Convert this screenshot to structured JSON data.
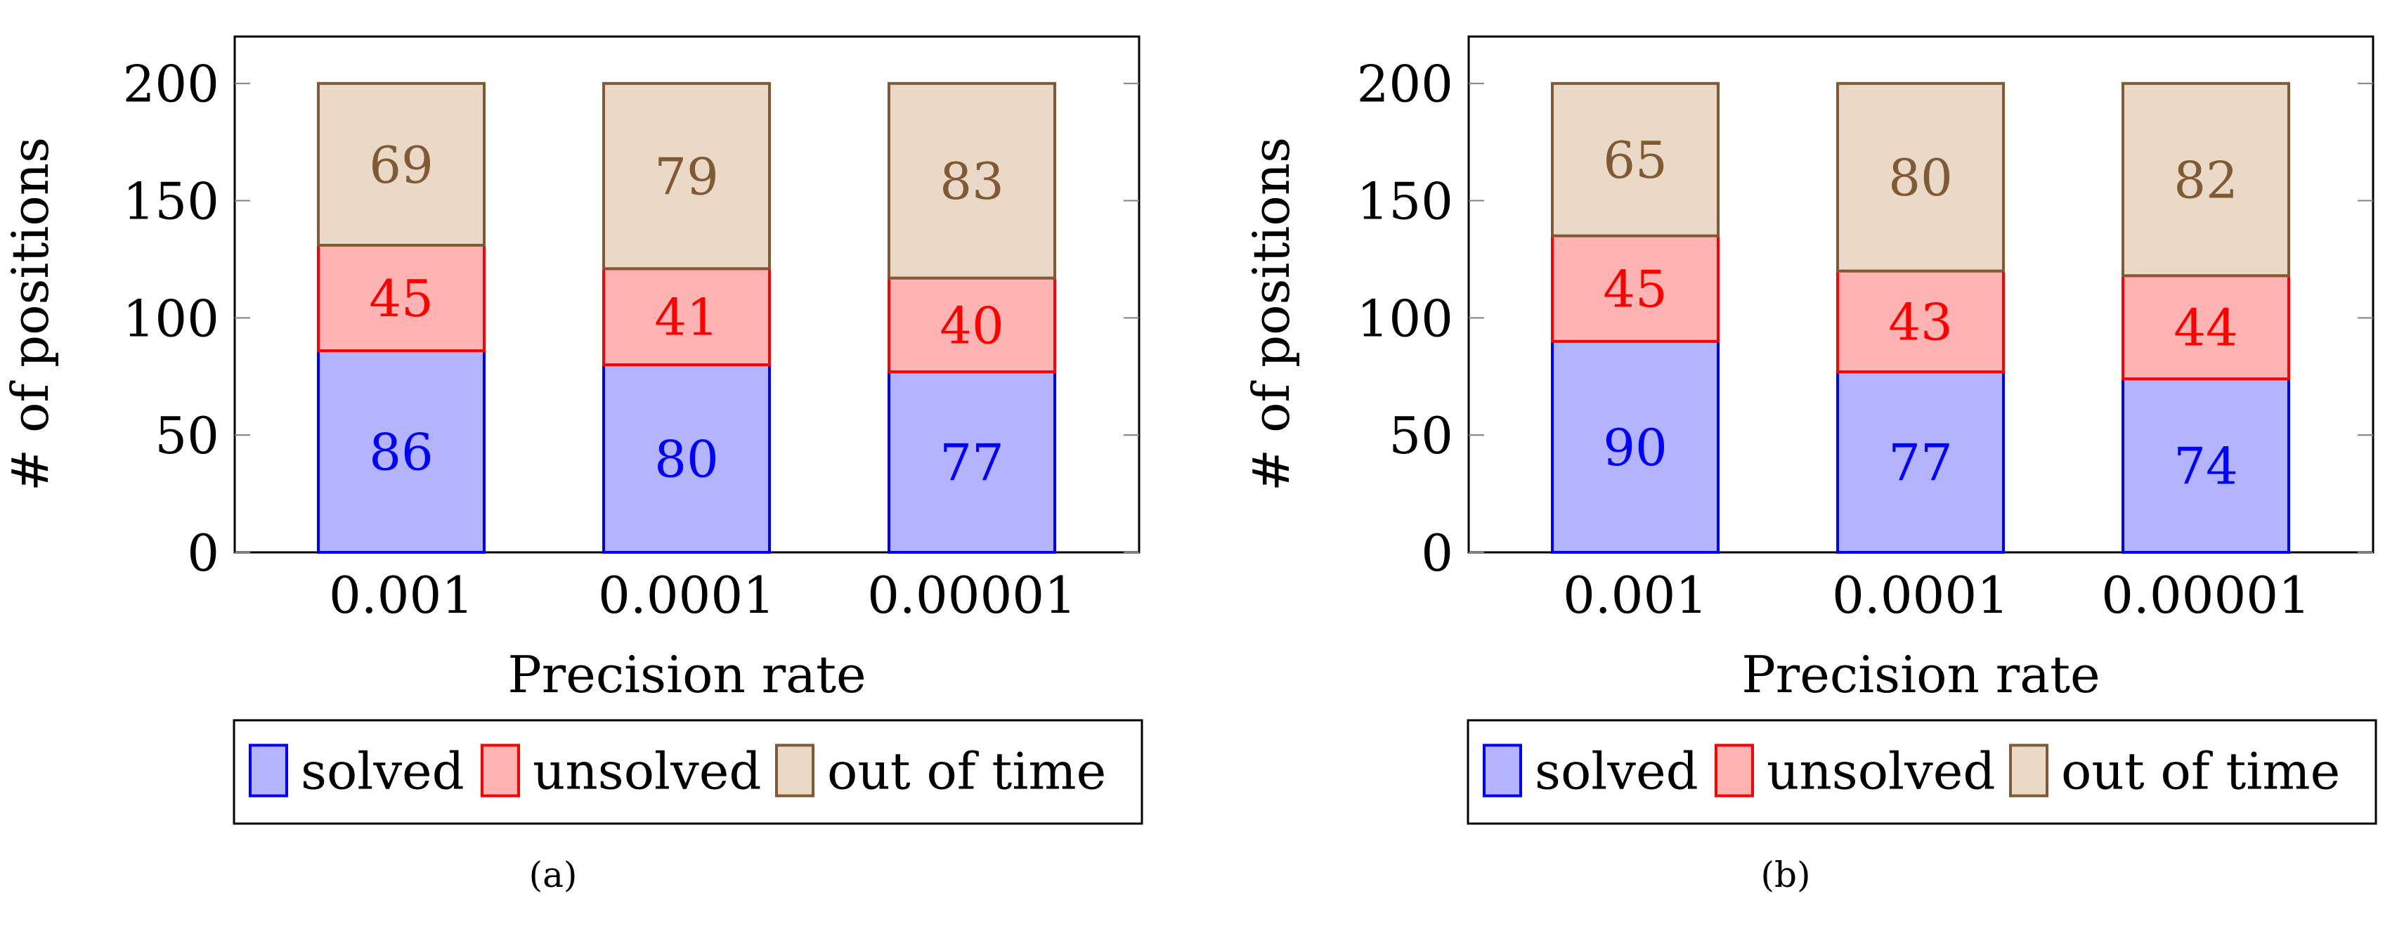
{
  "colors": {
    "solved_fill": "#b3b3ff",
    "solved_stroke": "#0000ff",
    "solved_text": "#0000ff",
    "unsolved_fill": "#ffb3b3",
    "unsolved_stroke": "#ff0000",
    "unsolved_text": "#ff0000",
    "timeout_fill": "#ead9c6",
    "timeout_stroke": "#7f5a35",
    "timeout_text": "#7f5a35",
    "axis": "#000000",
    "gridtick": "#808080"
  },
  "chart_data": [
    {
      "type": "bar",
      "stacked": true,
      "caption": "(a)",
      "xlabel": "Precision rate",
      "ylabel": "# of positions",
      "ylim": [
        0,
        220
      ],
      "yticks": [
        0,
        50,
        100,
        150,
        200
      ],
      "categories": [
        "0.001",
        "0.0001",
        "0.00001"
      ],
      "series": [
        {
          "name": "solved",
          "values": [
            86,
            80,
            77
          ]
        },
        {
          "name": "unsolved",
          "values": [
            45,
            41,
            40
          ]
        },
        {
          "name": "out of time",
          "values": [
            69,
            79,
            83
          ]
        }
      ],
      "legend_position": "bottom"
    },
    {
      "type": "bar",
      "stacked": true,
      "caption": "(b)",
      "xlabel": "Precision rate",
      "ylabel": "# of positions",
      "ylim": [
        0,
        220
      ],
      "yticks": [
        0,
        50,
        100,
        150,
        200
      ],
      "categories": [
        "0.001",
        "0.0001",
        "0.00001"
      ],
      "series": [
        {
          "name": "solved",
          "values": [
            90,
            77,
            74
          ]
        },
        {
          "name": "unsolved",
          "values": [
            45,
            43,
            44
          ]
        },
        {
          "name": "out of time",
          "values": [
            65,
            80,
            82
          ]
        }
      ],
      "legend_position": "bottom"
    }
  ]
}
